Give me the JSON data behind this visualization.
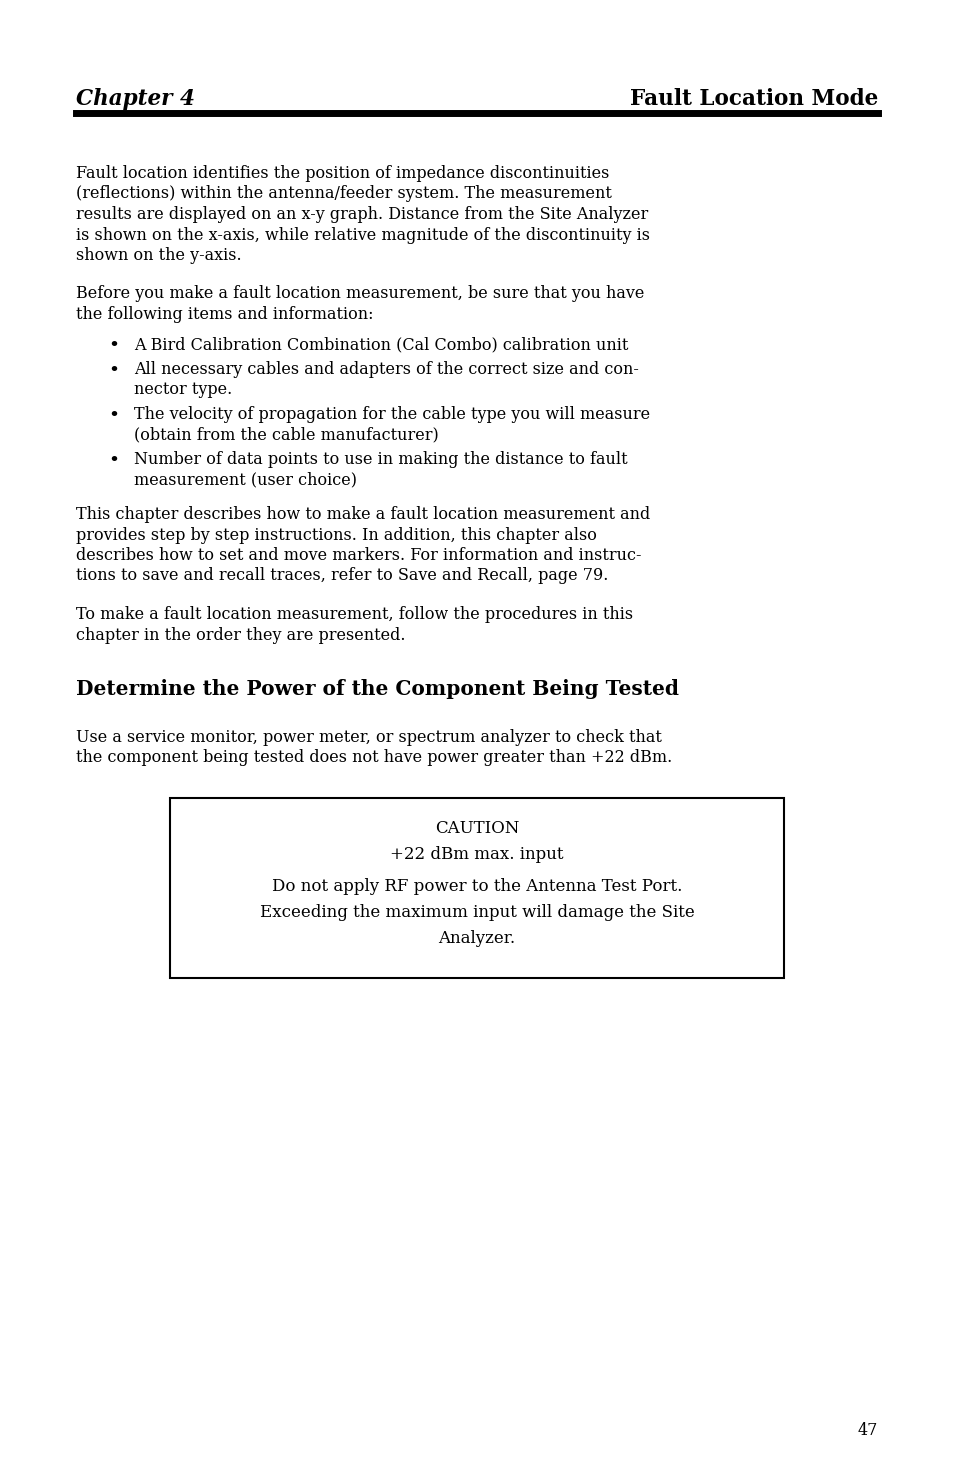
{
  "bg_color": "#ffffff",
  "text_color": "#000000",
  "header_left": "Chapter 4",
  "header_right": "Fault Location Mode",
  "header_line_color": "#000000",
  "para1_lines": [
    "Fault location identifies the position of impedance discontinuities",
    "(reflections) within the antenna/feeder system. The measurement",
    "results are displayed on an x-y graph. Distance from the Site Analyzer",
    "is shown on the x-axis, while relative magnitude of the discontinuity is",
    "shown on the y-axis."
  ],
  "para2_lines": [
    "Before you make a fault location measurement, be sure that you have",
    "the following items and information:"
  ],
  "bullets": [
    [
      "A Bird Calibration Combination (Cal Combo) calibration unit"
    ],
    [
      "All necessary cables and adapters of the correct size and con-",
      "nector type."
    ],
    [
      "The velocity of propagation for the cable type you will measure",
      "(obtain from the cable manufacturer)"
    ],
    [
      "Number of data points to use in making the distance to fault",
      "measurement (user choice)"
    ]
  ],
  "para3_lines": [
    "This chapter describes how to make a fault location measurement and",
    "provides step by step instructions. In addition, this chapter also",
    "describes how to set and move markers. For information and instruc-",
    "tions to save and recall traces, refer to Save and Recall, page 79."
  ],
  "para4_lines": [
    "To make a fault location measurement, follow the procedures in this",
    "chapter in the order they are presented."
  ],
  "section_title": "Determine the Power of the Component Being Tested",
  "para5_lines": [
    "Use a service monitor, power meter, or spectrum analyzer to check that",
    "the component being tested does not have power greater than +22 dBm."
  ],
  "caution_lines": [
    "CAUTION",
    "+22 dBm max. input",
    "Do not apply RF power to the Antenna Test Port.",
    "Exceeding the maximum input will damage the Site",
    "Analyzer."
  ],
  "page_number": "47"
}
